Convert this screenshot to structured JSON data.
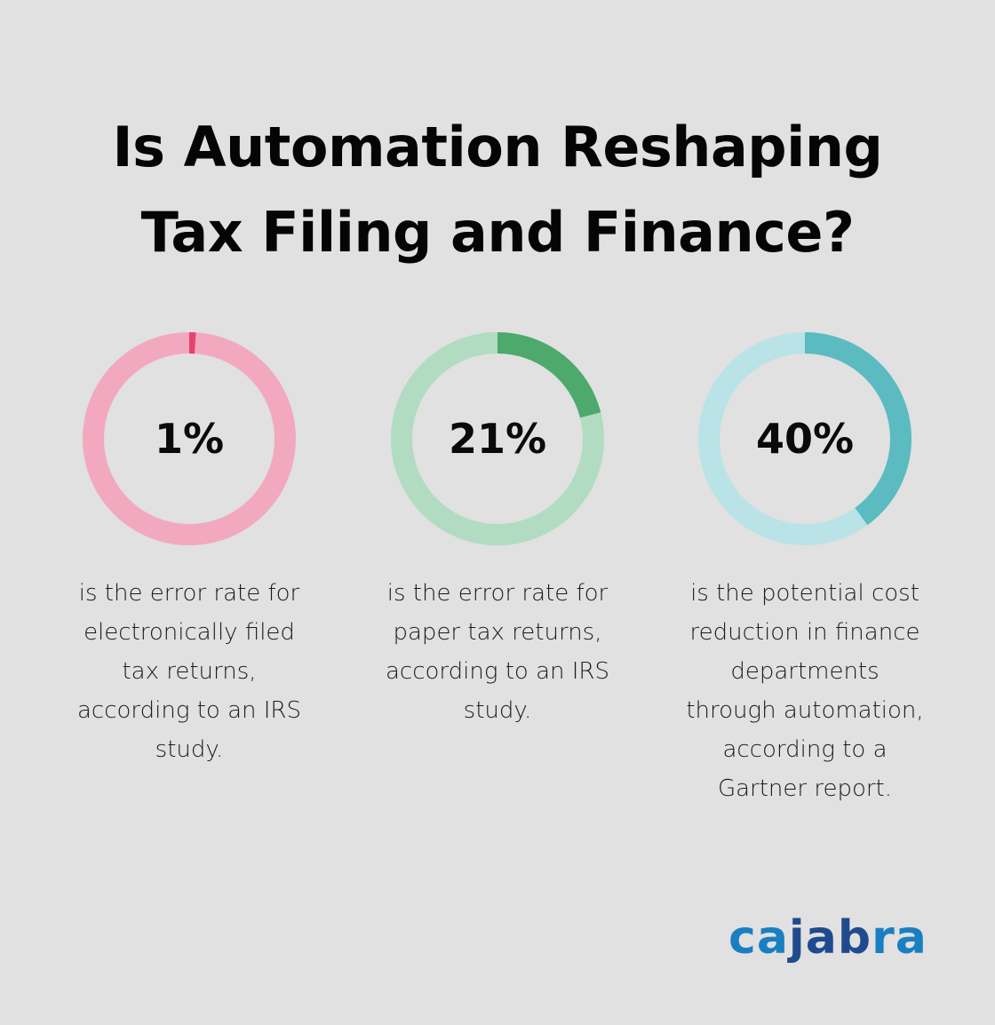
{
  "title": {
    "line1": "Is Automation Reshaping",
    "line2": "Tax Filing and Finance?"
  },
  "stats": [
    {
      "value": "1%",
      "percent": 1,
      "description": [
        "is the error rate for",
        "electronically filed",
        "tax returns,",
        "according to an IRS",
        "study."
      ],
      "colors": {
        "track": "#f2a9c0",
        "fill": "#e6416f"
      }
    },
    {
      "value": "21%",
      "percent": 21,
      "description": [
        "is the error rate for",
        "paper tax returns,",
        "according to an IRS",
        "study."
      ],
      "colors": {
        "track": "#b1dcc1",
        "fill": "#4ea96c"
      }
    },
    {
      "value": "40%",
      "percent": 40,
      "description": [
        "is the potential cost",
        "reduction in finance",
        "departments",
        "through automation,",
        "according to a",
        "Gartner report."
      ],
      "colors": {
        "track": "#b9e3e6",
        "fill": "#5bbbc1"
      }
    }
  ],
  "logo": {
    "part1": "ca",
    "part2": "jab",
    "part3": "ra",
    "colors": {
      "light": "#1a7fc1",
      "dark": "#1f4b8e"
    }
  },
  "chart_data": {
    "type": "pie",
    "subtype": "donut",
    "title": "Is Automation Reshaping Tax Filing and Finance?",
    "categories": [
      "Error rate for electronically filed tax returns (IRS study)",
      "Error rate for paper tax returns (IRS study)",
      "Potential cost reduction in finance departments through automation (Gartner report)"
    ],
    "values": [
      1,
      21,
      40
    ],
    "unit": "%",
    "max": 100,
    "legend": "none"
  }
}
